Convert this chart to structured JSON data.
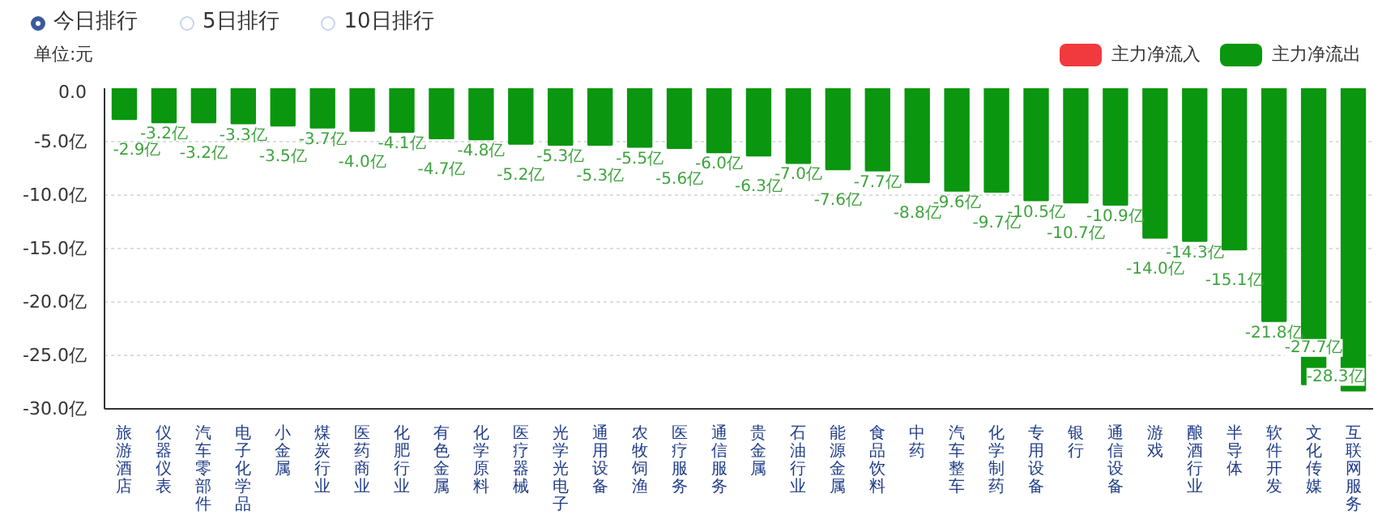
{
  "chart_data": {
    "type": "bar",
    "ylabel": "单位:元",
    "annotations": [
      "今日排行",
      "5日排行",
      "10日排行"
    ],
    "categories": [
      "旅游酒店",
      "仪器仪表",
      "汽车零部件",
      "电子化学品",
      "小金属",
      "煤炭行业",
      "医药商业",
      "化肥行业",
      "有色金属",
      "化学原料",
      "医疗器械",
      "光学光电子",
      "通用设备",
      "农牧饲渔",
      "医疗服务",
      "通信服务",
      "贵金属",
      "石油行业",
      "能源金属",
      "食品饮料",
      "中药",
      "汽车整车",
      "化学制药",
      "专用设备",
      "银行",
      "通信设备",
      "游戏",
      "酿酒行业",
      "半导体",
      "软件开发",
      "文化传媒",
      "互联网服务"
    ],
    "series": [
      {
        "name": "主力净流入",
        "color": "#f03a3e",
        "values": [
          null,
          null,
          null,
          null,
          null,
          null,
          null,
          null,
          null,
          null,
          null,
          null,
          null,
          null,
          null,
          null,
          null,
          null,
          null,
          null,
          null,
          null,
          null,
          null,
          null,
          null,
          null,
          null,
          null,
          null,
          null,
          null
        ]
      },
      {
        "name": "主力净流出",
        "color": "#0a960f",
        "values": [
          -2.9,
          -3.2,
          -3.2,
          -3.3,
          -3.5,
          -3.7,
          -4.0,
          -4.1,
          -4.7,
          -4.8,
          -5.2,
          -5.3,
          -5.3,
          -5.5,
          -5.6,
          -6.0,
          -6.3,
          -7.0,
          -7.6,
          -7.7,
          -8.8,
          -9.6,
          -9.7,
          -10.5,
          -10.7,
          -10.9,
          -14.0,
          -14.3,
          -15.1,
          -21.8,
          -27.7,
          -28.3
        ],
        "value_labels": [
          "-2.9亿",
          "-3.2亿",
          "-3.2亿",
          "-3.3亿",
          "-3.5亿",
          "-3.7亿",
          "-4.0亿",
          "-4.1亿",
          "-4.7亿",
          "-4.8亿",
          "-5.2亿",
          "-5.3亿",
          "-5.3亿",
          "-5.5亿",
          "-5.6亿",
          "-6.0亿",
          "-6.3亿",
          "-7.0亿",
          "-7.6亿",
          "-7.7亿",
          "-8.8亿",
          "-9.6亿",
          "-9.7亿",
          "-10.5亿",
          "-10.7亿",
          "-10.9亿",
          "-14.0亿",
          "-14.3亿",
          "-15.1亿",
          "-21.8亿",
          "-27.7亿",
          "-28.3亿"
        ]
      }
    ],
    "ylim": [
      -30,
      0
    ],
    "yticks": [
      {
        "value": 0,
        "label": "0.0"
      },
      {
        "value": -5,
        "label": "-5.0亿"
      },
      {
        "value": -10,
        "label": "-10.0亿"
      },
      {
        "value": -15,
        "label": "-15.0亿"
      },
      {
        "value": -20,
        "label": "-20.0亿"
      },
      {
        "value": -25,
        "label": "-25.0亿"
      },
      {
        "value": -30,
        "label": "-30.0亿"
      }
    ],
    "grid": "y",
    "legend": "top right"
  }
}
